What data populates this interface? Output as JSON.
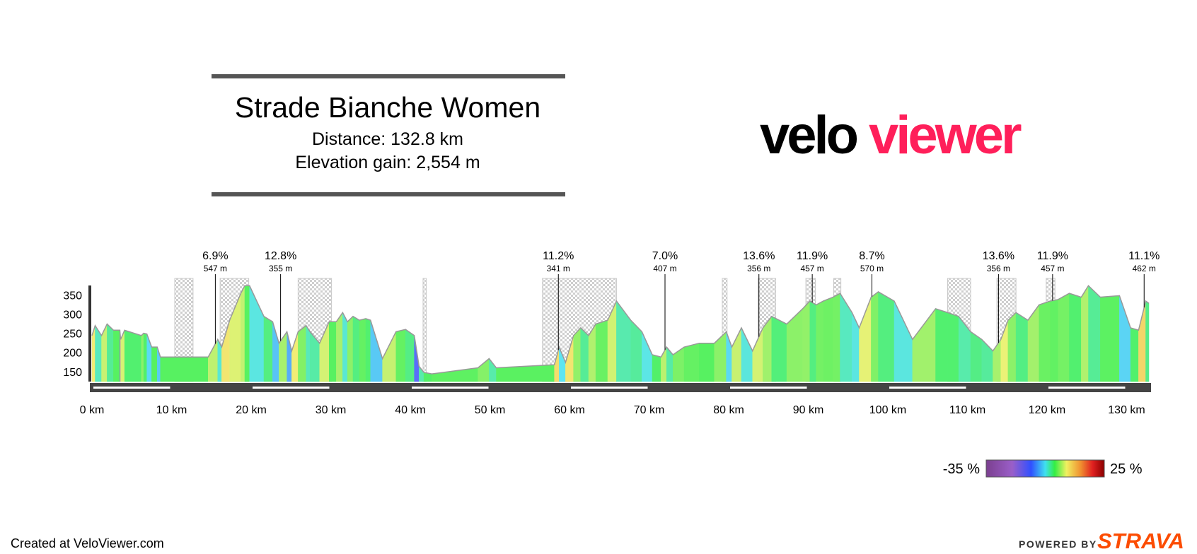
{
  "header": {
    "title": "Strade Bianche Women",
    "distance": "Distance: 132.8 km",
    "elevation_gain": "Elevation gain: 2,554 m"
  },
  "logo": {
    "velo": "velo",
    "viewer": "viewer"
  },
  "footer": {
    "credit": "Created at VeloViewer.com",
    "powered_by": "POWERED BY",
    "brand": "STRAVA"
  },
  "chart_data": {
    "type": "elevation-profile",
    "x": [
      0,
      0.4,
      1.2,
      1.9,
      2.7,
      3.5,
      3.6,
      4.1,
      6.2,
      6.5,
      6.9,
      7.5,
      8.2,
      8.6,
      14.6,
      15.8,
      16.3,
      17.3,
      18.7,
      19.2,
      19.8,
      21.6,
      22.7,
      23.5,
      24.5,
      25.1,
      25.9,
      26.9,
      27.4,
      28.6,
      29.8,
      30.7,
      31.5,
      32.1,
      32.8,
      33.6,
      34.4,
      35.0,
      36.5,
      38.2,
      39.4,
      40.5,
      41.1,
      41.7,
      42.7,
      48.5,
      49.9,
      50.8,
      58.1,
      58.7,
      59.5,
      60.5,
      61.4,
      62.4,
      63.3,
      64.8,
      65.9,
      67.7,
      69.1,
      70.4,
      71.5,
      72.2,
      73.0,
      74.4,
      76.3,
      78.2,
      79.7,
      80.4,
      81.6,
      83.0,
      84.3,
      85.4,
      87.3,
      89.3,
      90.2,
      91.0,
      91.9,
      93.1,
      94.0,
      95.5,
      96.4,
      97.9,
      98.8,
      100.8,
      103.1,
      106.0,
      107.5,
      108.9,
      110.4,
      111.8,
      113.2,
      114.2,
      115.1,
      116.1,
      117.6,
      119.0,
      120.4,
      121.4,
      122.8,
      124.3,
      125.2,
      126.7,
      129.1,
      130.5,
      131.5,
      132.4,
      132.8
    ],
    "y": [
      244,
      270,
      244,
      274,
      258,
      258,
      234,
      258,
      244,
      250,
      248,
      214,
      214,
      188,
      188,
      234,
      214,
      284,
      354,
      374,
      374,
      294,
      280,
      224,
      254,
      204,
      254,
      270,
      254,
      224,
      280,
      280,
      304,
      280,
      294,
      284,
      288,
      284,
      184,
      254,
      260,
      244,
      164,
      148,
      144,
      160,
      184,
      160,
      168,
      214,
      174,
      244,
      264,
      244,
      274,
      284,
      334,
      284,
      254,
      194,
      188,
      214,
      194,
      214,
      224,
      224,
      254,
      214,
      264,
      204,
      264,
      294,
      274,
      314,
      334,
      324,
      334,
      344,
      354,
      304,
      264,
      344,
      358,
      334,
      234,
      314,
      304,
      294,
      254,
      234,
      204,
      234,
      284,
      304,
      284,
      324,
      334,
      338,
      354,
      344,
      374,
      344,
      348,
      264,
      258,
      334,
      328
    ],
    "xlim": [
      0,
      132.8
    ],
    "ylim": [
      124,
      380
    ],
    "xticks": [
      {
        "value": 0,
        "label": "0 km"
      },
      {
        "value": 10,
        "label": "10 km"
      },
      {
        "value": 20,
        "label": "20 km"
      },
      {
        "value": 30,
        "label": "30 km"
      },
      {
        "value": 40,
        "label": "40 km"
      },
      {
        "value": 50,
        "label": "50 km"
      },
      {
        "value": 60,
        "label": "60 km"
      },
      {
        "value": 70,
        "label": "70 km"
      },
      {
        "value": 80,
        "label": "80 km"
      },
      {
        "value": 90,
        "label": "90 km"
      },
      {
        "value": 100,
        "label": "100 km"
      },
      {
        "value": 110,
        "label": "110 km"
      },
      {
        "value": 120,
        "label": "120 km"
      },
      {
        "value": 130,
        "label": "130 km"
      }
    ],
    "yticks": [
      150,
      200,
      250,
      300,
      350
    ],
    "sectors": [
      [
        10.4,
        12.7
      ],
      [
        16.1,
        19.7
      ],
      [
        25.9,
        30.1
      ],
      [
        41.6,
        42.0
      ],
      [
        56.6,
        65.9
      ],
      [
        79.2,
        79.8
      ],
      [
        83.7,
        85.9
      ],
      [
        89.7,
        90.9
      ],
      [
        93.2,
        94.1
      ],
      [
        107.5,
        110.4
      ],
      [
        113.7,
        116.1
      ],
      [
        119.9,
        121.0
      ]
    ],
    "annotations": [
      {
        "x": 15.5,
        "grade": "6.9%",
        "length": "547 m"
      },
      {
        "x": 23.7,
        "grade": "12.8%",
        "length": "355 m"
      },
      {
        "x": 58.6,
        "grade": "11.2%",
        "length": "341 m"
      },
      {
        "x": 72.0,
        "grade": "7.0%",
        "length": "407 m"
      },
      {
        "x": 83.8,
        "grade": "13.6%",
        "length": "356 m"
      },
      {
        "x": 90.5,
        "grade": "11.9%",
        "length": "457 m"
      },
      {
        "x": 98.0,
        "grade": "8.7%",
        "length": "570 m"
      },
      {
        "x": 113.9,
        "grade": "13.6%",
        "length": "356 m"
      },
      {
        "x": 120.7,
        "grade": "11.9%",
        "length": "457 m"
      },
      {
        "x": 132.2,
        "grade": "11.1%",
        "length": "462 m"
      }
    ],
    "color_scale": {
      "min": {
        "value": -35,
        "label": "-35 %"
      },
      "max": {
        "value": 25,
        "label": "25 %"
      }
    }
  }
}
